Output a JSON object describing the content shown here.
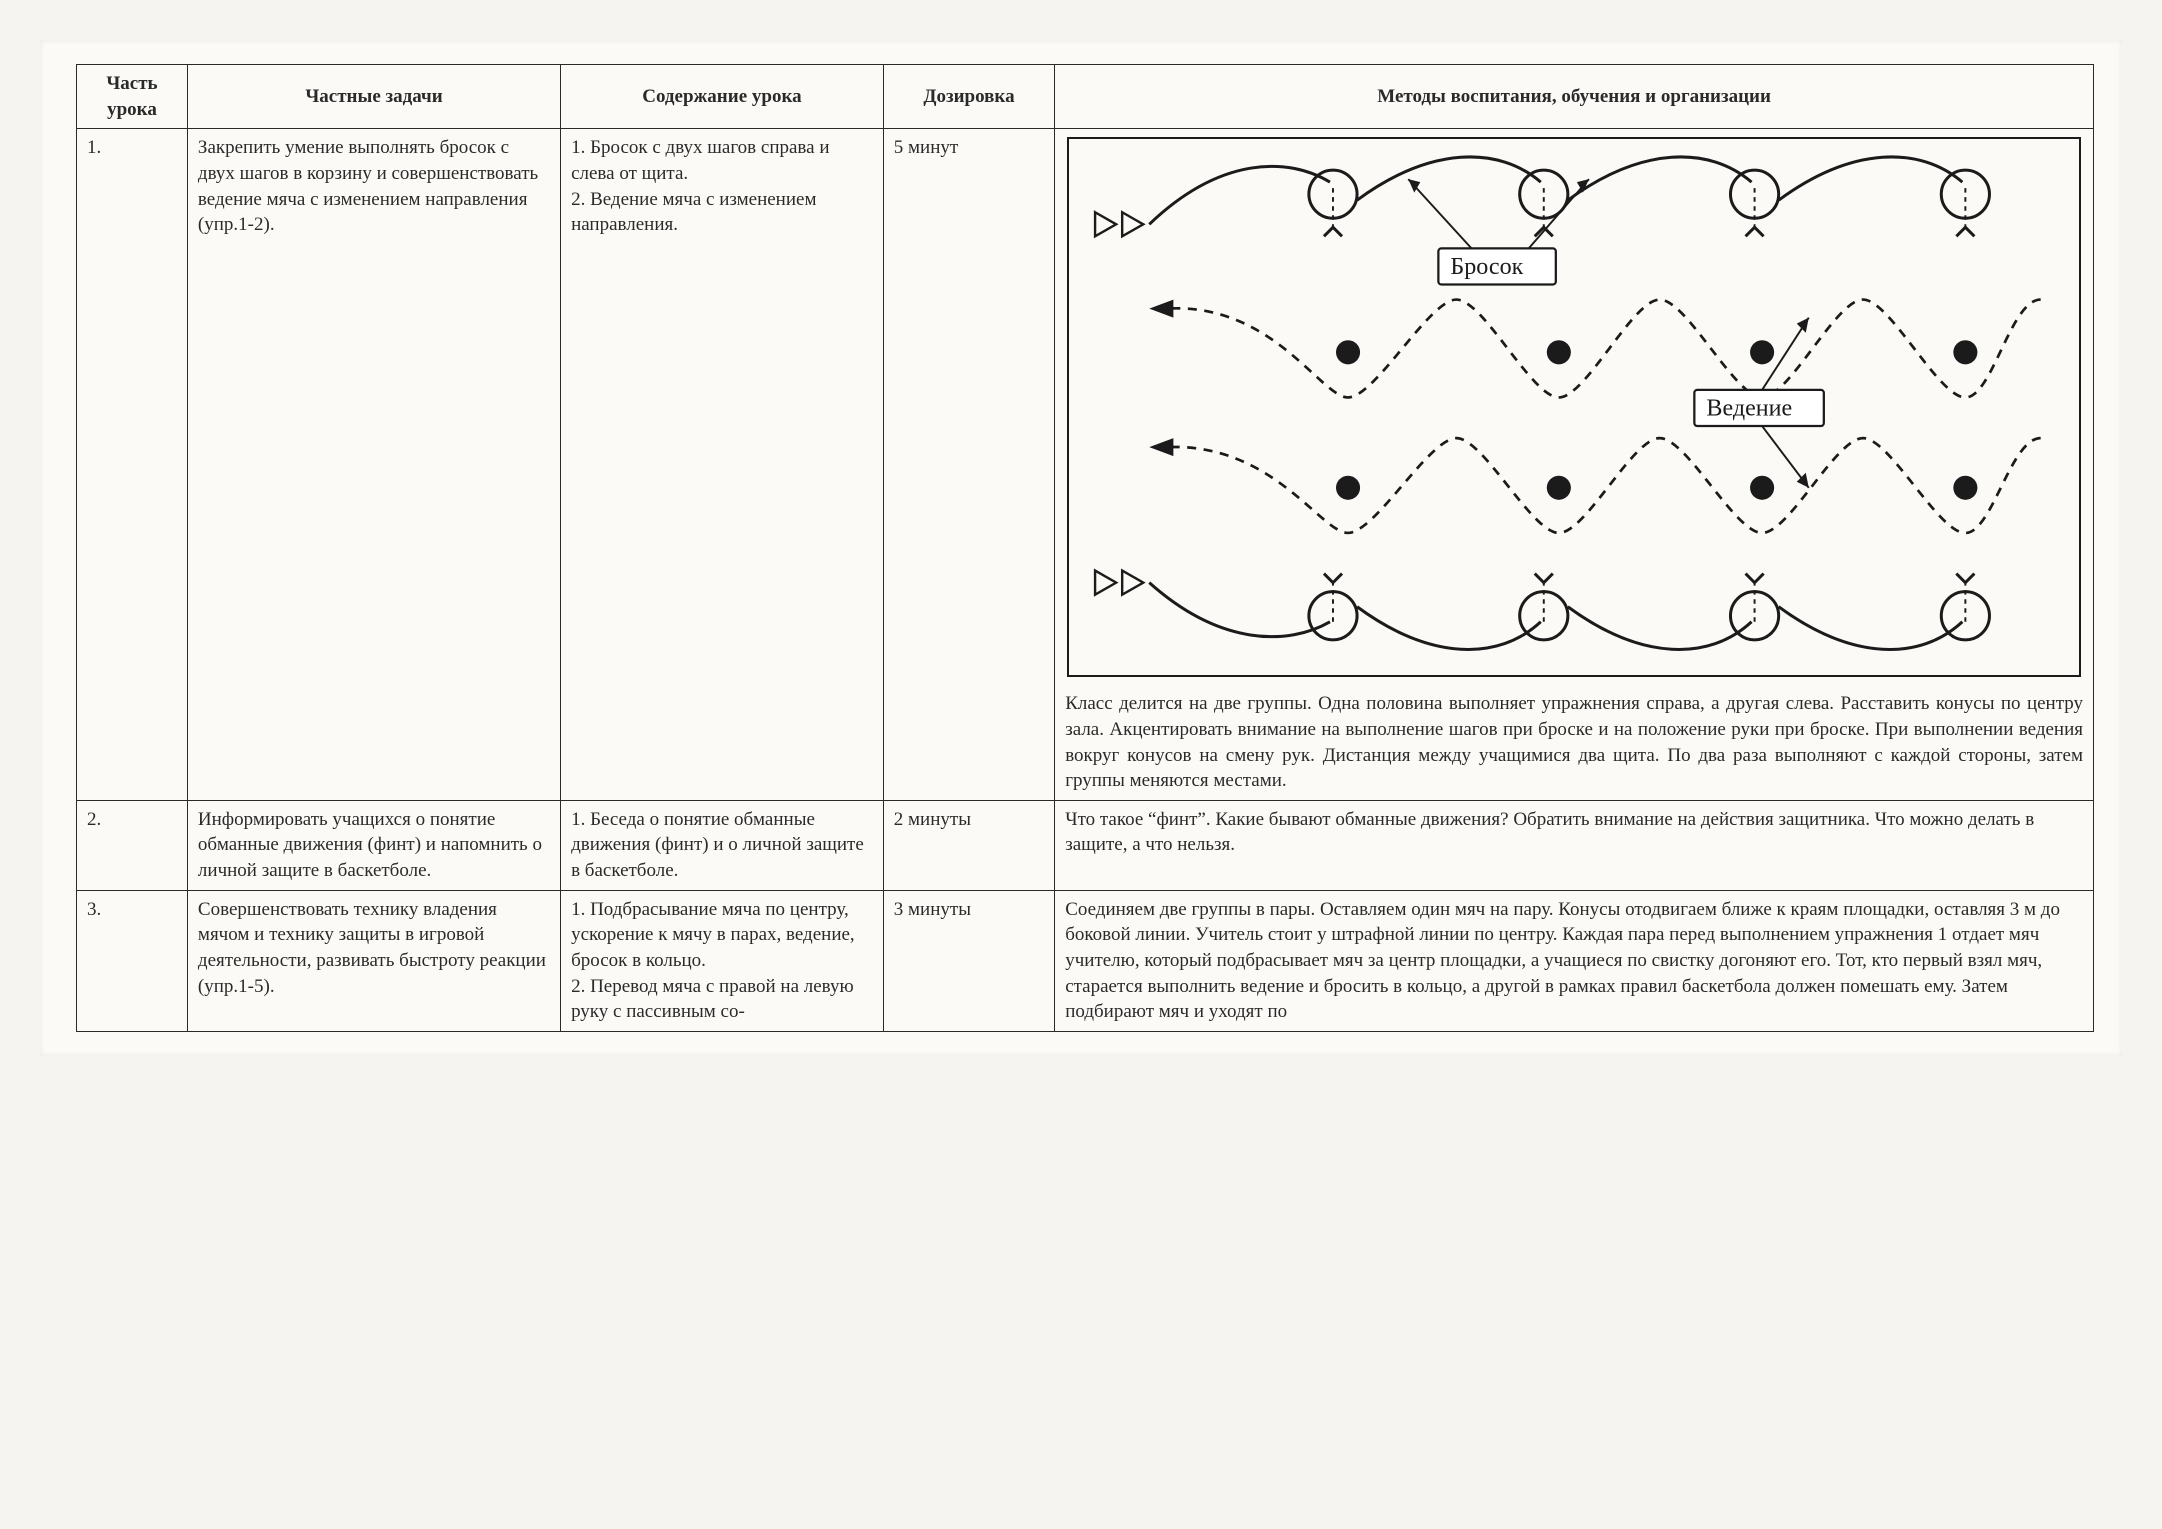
{
  "headers": {
    "num": "Часть урока",
    "tasks": "Частные задачи",
    "content": "Содержание урока",
    "dose": "Дозировка",
    "methods": "Методы воспитания, обучения и организации"
  },
  "rows": [
    {
      "num": "1.",
      "tasks": "Закрепить умение выпол­нять бросок с двух шагов в корзину и совершенст­вовать ведение мяча с из­менением направления (упр.1-2).",
      "content": "1. Бросок с двух ша­гов справа и слева от щита.\n2. Ведение мяча с изменением направ­ления.",
      "dose": "5 минут",
      "methods_text": "Класс делится на две группы. Одна половина выполняет упраж­нения справа, а другая слева. Расставить конусы по центру зала. Акцентировать внимание на выполнение шагов при броске и на положение руки при броске. При выполнении ведения вокруг ко­нусов на смену рук. Дистанция между учащимися два щита. По два раза выполняют с каждой стороны, затем группы меняются местами.",
      "diagram": {
        "label_throw": "Бросок",
        "label_dribble": "Ведение"
      }
    },
    {
      "num": "2.",
      "tasks": "Информировать учащих­ся о понятие обманные движения (финт) и на­помнить о личной защите в баскетболе.",
      "content": "1. Беседа о понятие обманные движения (финт) и о личной защите в баскетболе.",
      "dose": "2 минуты",
      "methods_text": "Что такое “финт”. Какие бывают обманные движения? Обратить внимание на действия защитника. Что можно делать в защите, а что нельзя."
    },
    {
      "num": "3.",
      "tasks": "Совершенствовать техни­ку владения мячом и тех­нику защиты в игровой деятельности, развивать быстроту реакции (упр.1-5).",
      "content": "1. Подбрасывание мяча по центру, ус­корение к мячу в па­рах, ведение, бросок в кольцо.\n2. Перевод мяча с правой на левую ру­ку с пассивным со-",
      "dose": "3 минуты",
      "methods_text": "Соединяем две группы в пары. Оставляем один мяч на пару. Ко­нусы отодвигаем ближе к краям площадки, оставляя 3 м до боко­вой линии. Учитель стоит у штрафной линии по центру. Каждая пара перед выполнением упражнения 1 отдает мяч учителю, ко­торый подбрасывает мяч за центр площадки, а учащиеся по сви­стку догоняют его. Тот, кто первый взял мяч, старается выпол­нить ведение и бросить в кольцо, а другой в рамках правил бас­кетбола должен помешать ему. Затем подбирают мяч и уходят по"
    }
  ]
}
